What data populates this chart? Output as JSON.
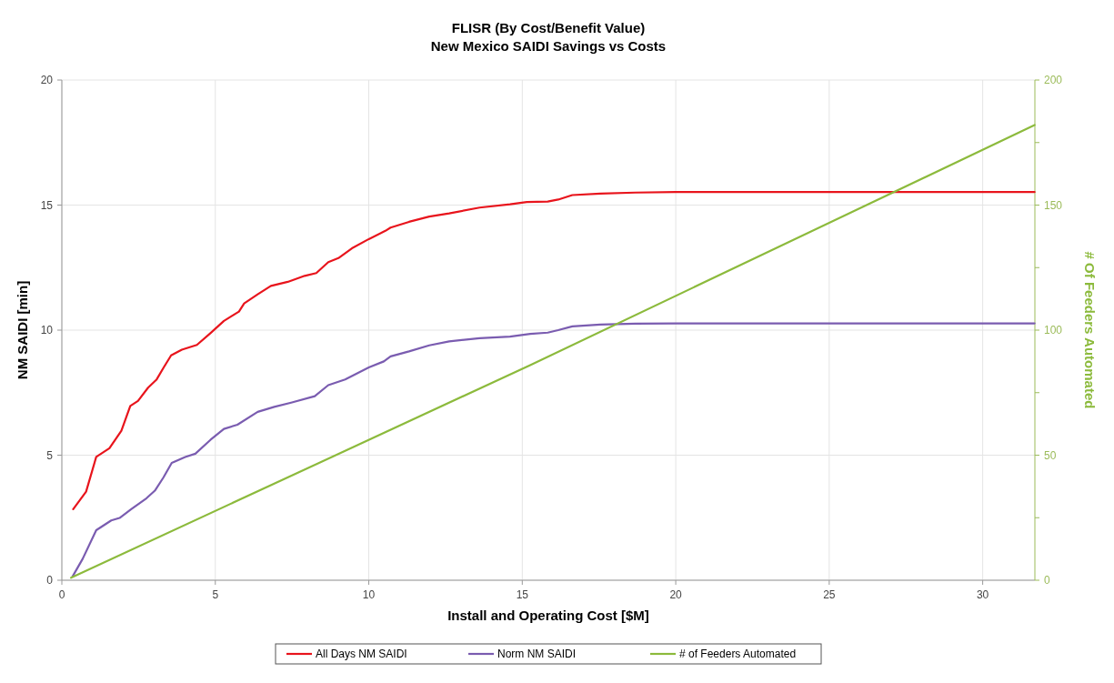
{
  "chart_data": {
    "type": "line",
    "title": "FLISR (By Cost/Benefit Value)",
    "subtitle": "New Mexico SAIDI Savings vs Costs",
    "xlabel": "Install and Operating Cost [$M]",
    "ylabel": "NM SAIDI [min]",
    "y2label": "# Of Feeders Automated",
    "xlim": [
      0,
      31.7
    ],
    "xticks": [
      0,
      5,
      10,
      15,
      20,
      25,
      30
    ],
    "ylim": [
      0,
      20
    ],
    "yticks": [
      0,
      5,
      10,
      15,
      20
    ],
    "y2lim": [
      0,
      200
    ],
    "y2ticks": [
      0,
      {
        "value": 25,
        "label": null
      },
      50,
      {
        "value": 75,
        "label": null
      },
      100,
      {
        "value": 125,
        "label": null
      },
      150,
      {
        "value": 175,
        "label": null
      },
      200
    ],
    "grid": true,
    "legend": "bottom",
    "marker": "none",
    "line_style": "solid",
    "series": [
      {
        "name": "All Days NM SAIDI",
        "color": "#e8141c",
        "x": [
          0.37,
          0.79,
          1.12,
          1.55,
          1.94,
          2.23,
          2.48,
          2.81,
          3.09,
          3.31,
          3.56,
          3.91,
          4.4,
          4.84,
          5.28,
          5.77,
          5.94,
          6.38,
          6.81,
          7.36,
          7.91,
          8.29,
          8.68,
          9.01,
          9.45,
          10.0,
          10.54,
          10.71,
          11.31,
          11.97,
          12.62,
          13.61,
          14.6,
          15.15,
          15.83,
          16.17,
          16.63,
          17.54,
          18.68,
          20.0,
          31.69
        ],
        "values": [
          2.84,
          3.54,
          4.93,
          5.28,
          5.98,
          6.97,
          7.17,
          7.7,
          8.03,
          8.49,
          8.99,
          9.22,
          9.41,
          9.88,
          10.37,
          10.74,
          11.07,
          11.43,
          11.77,
          11.93,
          12.17,
          12.28,
          12.72,
          12.88,
          13.27,
          13.64,
          13.97,
          14.1,
          14.33,
          14.54,
          14.67,
          14.9,
          15.03,
          15.12,
          15.14,
          15.22,
          15.4,
          15.46,
          15.5,
          15.52,
          15.52
        ]
      },
      {
        "name": "Norm NM SAIDI",
        "color": "#7a5cb0",
        "x": [
          0.35,
          0.68,
          1.12,
          1.61,
          1.88,
          2.26,
          2.76,
          3.03,
          3.31,
          3.58,
          4.02,
          4.35,
          4.84,
          5.28,
          5.72,
          6.38,
          6.92,
          7.47,
          8.24,
          8.68,
          9.23,
          10.0,
          10.49,
          10.71,
          11.31,
          11.97,
          12.62,
          13.61,
          14.6,
          15.26,
          15.83,
          16.17,
          16.63,
          17.54,
          18.68,
          20.0,
          31.69
        ],
        "values": [
          0.15,
          0.86,
          2.0,
          2.39,
          2.49,
          2.84,
          3.28,
          3.58,
          4.11,
          4.69,
          4.93,
          5.06,
          5.61,
          6.05,
          6.22,
          6.73,
          6.93,
          7.1,
          7.36,
          7.8,
          8.03,
          8.51,
          8.75,
          8.95,
          9.15,
          9.39,
          9.55,
          9.68,
          9.74,
          9.85,
          9.9,
          10.0,
          10.15,
          10.22,
          10.26,
          10.27,
          10.27
        ]
      },
      {
        "name": "# of Feeders Automated",
        "color": "#8cba3c",
        "axis": "y2",
        "x": [
          0.3,
          15.26,
          31.69
        ],
        "values": [
          1,
          86,
          182
        ]
      }
    ]
  }
}
